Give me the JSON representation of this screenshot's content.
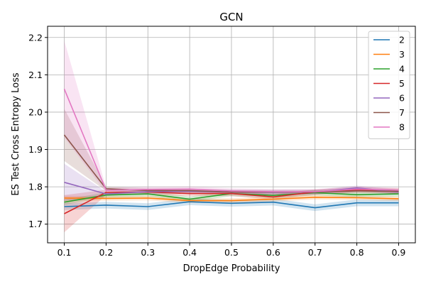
{
  "chart_data": {
    "type": "line",
    "title": "GCN",
    "xlabel": "DropEdge Probability",
    "ylabel": "ES Test Cross Entropy Loss",
    "x": [
      0.1,
      0.2,
      0.3,
      0.4,
      0.5,
      0.6,
      0.7,
      0.8,
      0.9
    ],
    "xlim": [
      0.06,
      0.94
    ],
    "ylim": [
      1.65,
      2.23
    ],
    "xticks": [
      "0.1",
      "0.2",
      "0.3",
      "0.4",
      "0.5",
      "0.6",
      "0.7",
      "0.8",
      "0.9"
    ],
    "yticks": [
      "1.7",
      "1.8",
      "1.9",
      "2.0",
      "2.1",
      "2.2"
    ],
    "grid": true,
    "legend": "top-right",
    "series": [
      {
        "name": "2",
        "color": "#1f77b4",
        "values": [
          1.747,
          1.751,
          1.747,
          1.76,
          1.756,
          1.759,
          1.744,
          1.757,
          1.757
        ],
        "band": 0.009
      },
      {
        "name": "3",
        "color": "#ff7f0e",
        "values": [
          1.77,
          1.769,
          1.77,
          1.763,
          1.763,
          1.767,
          1.772,
          1.771,
          1.768
        ],
        "band": 0.006
      },
      {
        "name": "4",
        "color": "#2ca02c",
        "values": [
          1.759,
          1.778,
          1.781,
          1.767,
          1.782,
          1.777,
          1.784,
          1.779,
          1.781
        ],
        "band": 0.007
      },
      {
        "name": "5",
        "color": "#d62728",
        "values": [
          1.728,
          1.785,
          1.786,
          1.782,
          1.782,
          1.773,
          1.786,
          1.792,
          1.789
        ],
        "band": 0.007,
        "band_first": 0.05
      },
      {
        "name": "6",
        "color": "#9467bd",
        "values": [
          1.812,
          1.781,
          1.787,
          1.788,
          1.786,
          1.785,
          1.786,
          1.797,
          1.786
        ],
        "band": 0.006,
        "band_first": 0.05
      },
      {
        "name": "7",
        "color": "#8c564b",
        "values": [
          1.939,
          1.795,
          1.79,
          1.79,
          1.786,
          1.786,
          1.786,
          1.789,
          1.788
        ],
        "band": 0.006,
        "band_first": 0.07
      },
      {
        "name": "8",
        "color": "#e377c2",
        "values": [
          2.062,
          1.791,
          1.793,
          1.794,
          1.789,
          1.787,
          1.787,
          1.794,
          1.791
        ],
        "band": 0.007,
        "band_first": 0.13
      }
    ]
  }
}
